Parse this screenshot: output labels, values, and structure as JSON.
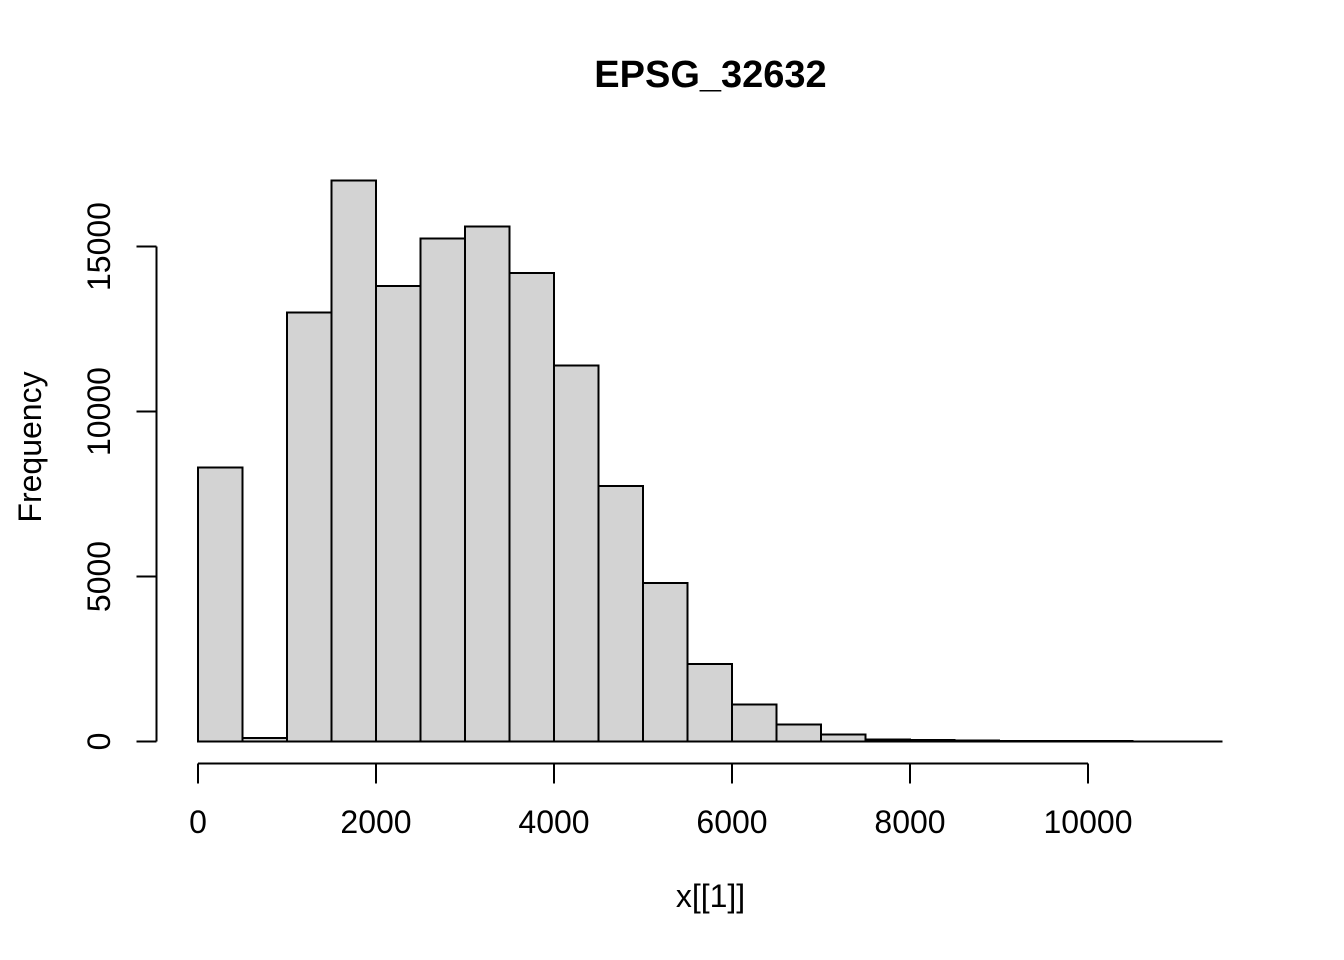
{
  "chart_data": {
    "type": "bar",
    "subtype": "histogram",
    "title": "EPSG_32632",
    "xlabel": "x[[1]]",
    "ylabel": "Frequency",
    "bin_start": 0,
    "bin_width": 500,
    "frequencies": [
      8300,
      100,
      13000,
      17000,
      13800,
      15250,
      15600,
      14200,
      11400,
      7750,
      4800,
      2350,
      1120,
      520,
      210,
      60,
      40,
      30,
      20,
      15,
      10,
      6,
      4
    ],
    "x_ticks": [
      0,
      2000,
      4000,
      6000,
      8000,
      10000
    ],
    "y_ticks": [
      0,
      5000,
      10000,
      15000
    ],
    "xlim": [
      0,
      11500
    ],
    "ylim": [
      0,
      15000
    ],
    "grid": false,
    "legend": "none",
    "bar_fill": "#d3d3d3",
    "bar_border": "#000000",
    "axis_color": "#000000",
    "background": "#ffffff"
  }
}
